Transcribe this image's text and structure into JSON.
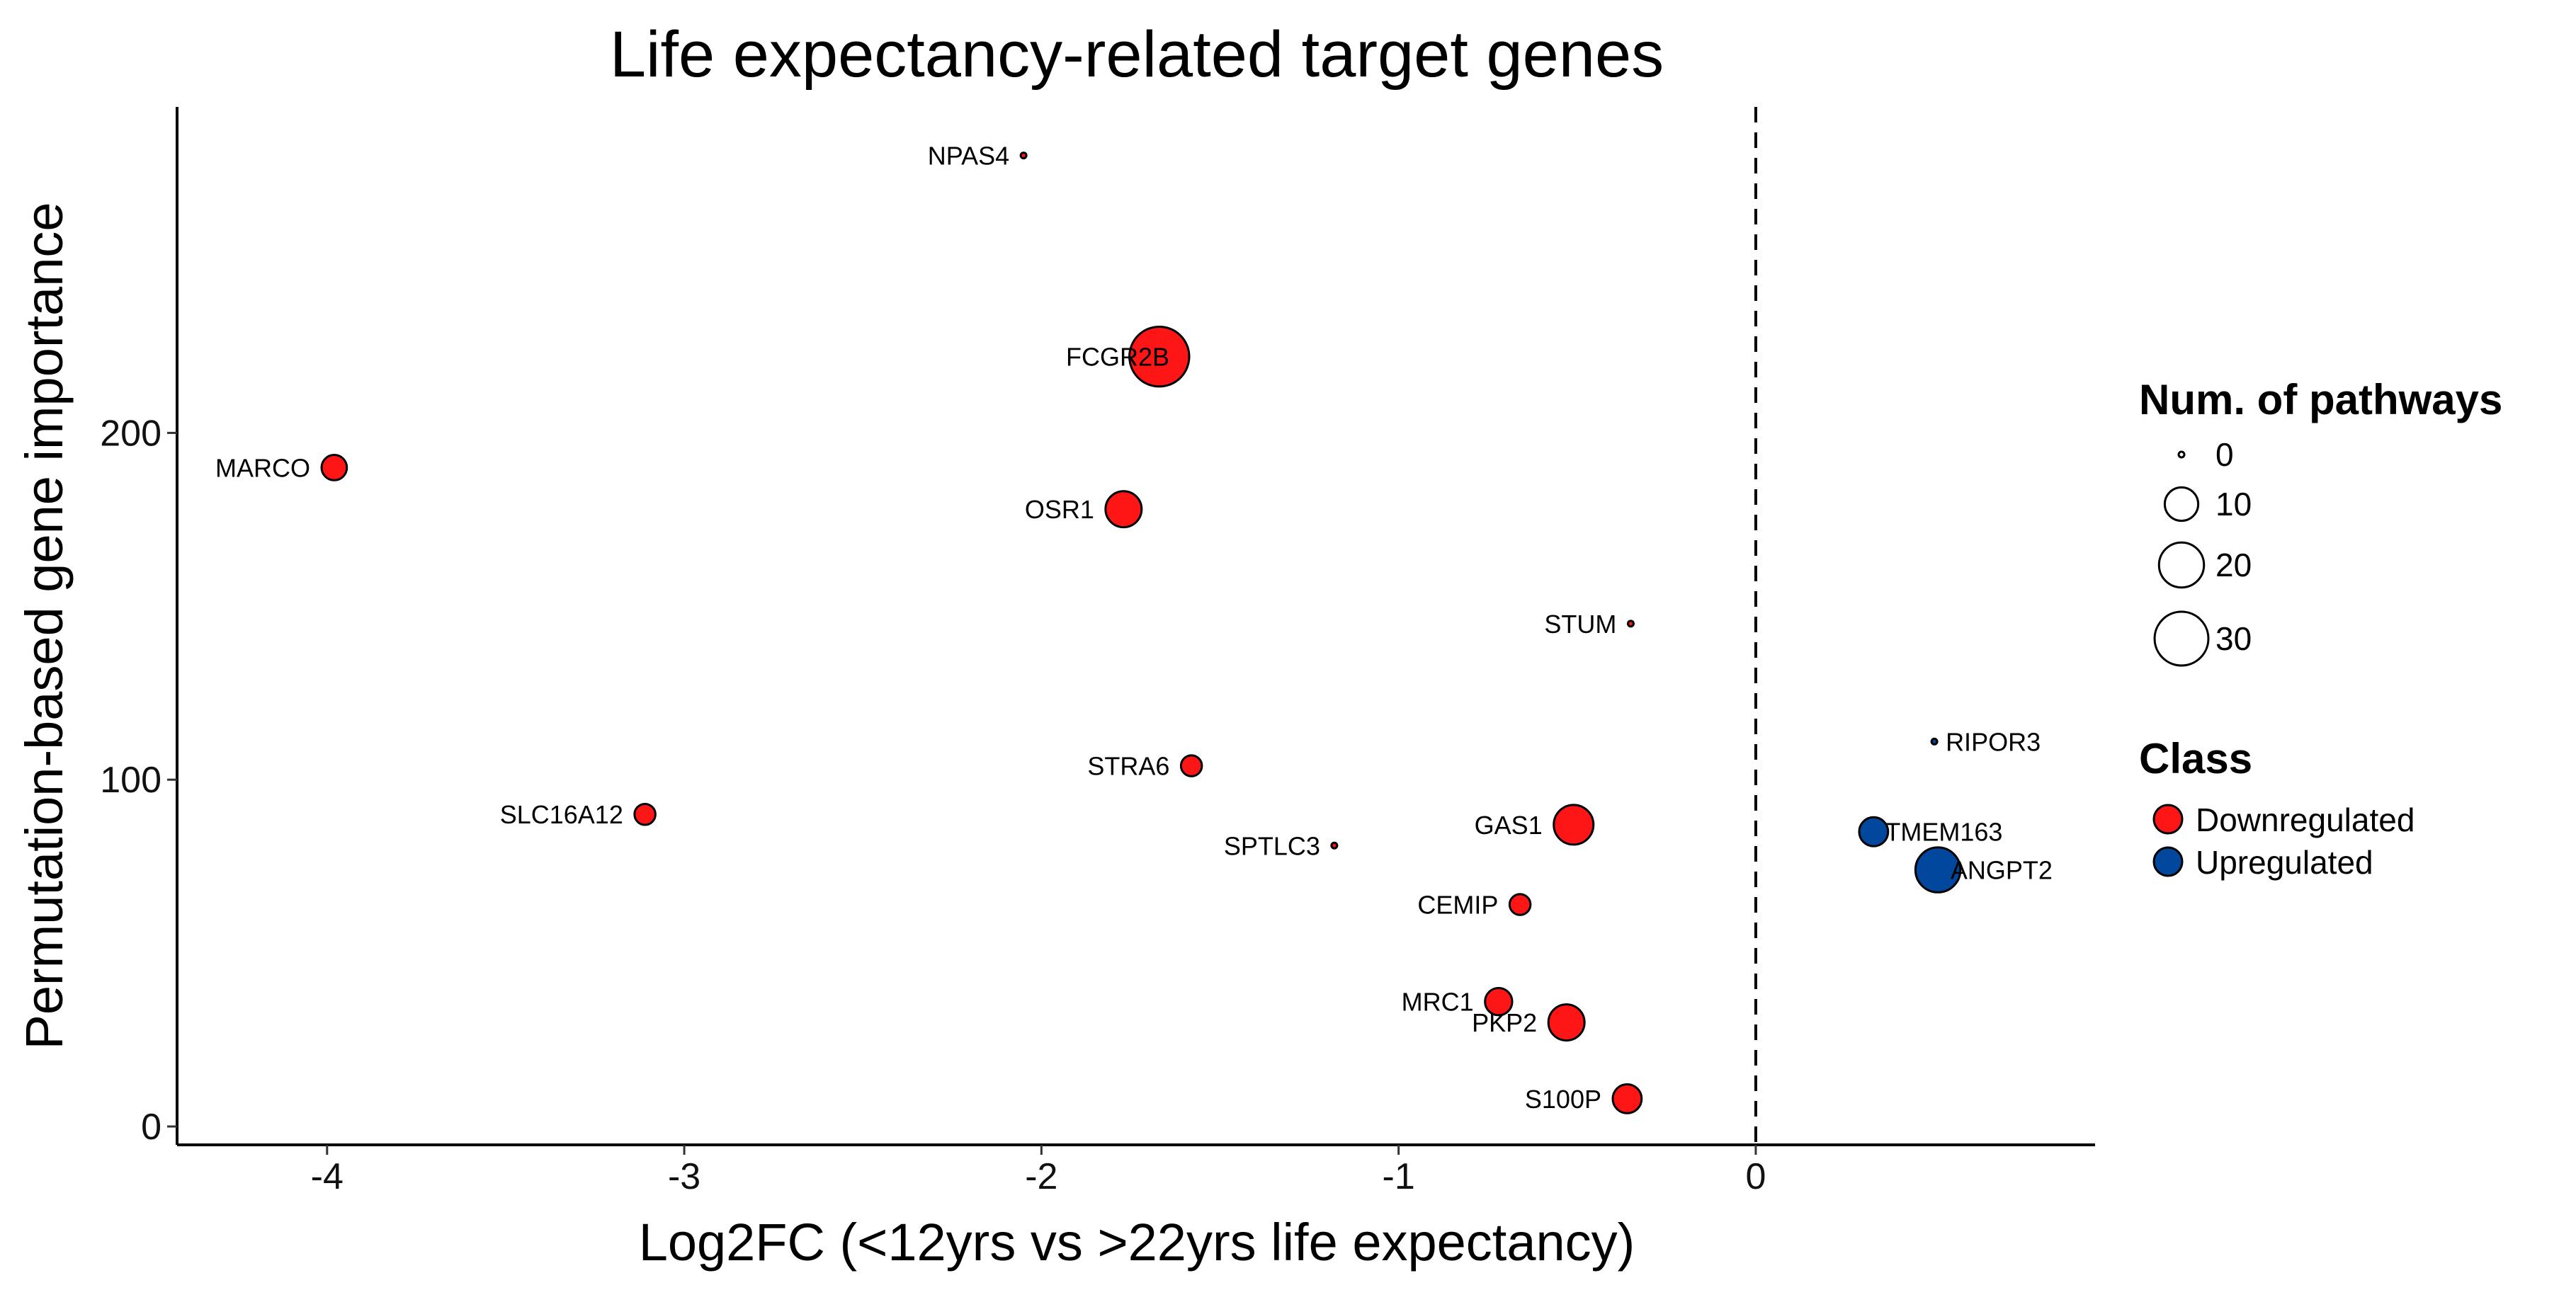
{
  "chart_data": {
    "type": "scatter",
    "title": "Life expectancy-related target genes",
    "xlabel": "Log2FC (<12yrs vs >22yrs life expectancy)",
    "ylabel": "Permutation-based gene importance",
    "xlim": [
      -4.42,
      0.95
    ],
    "ylim": [
      -5.3,
      294
    ],
    "xticks": [
      -4,
      -3,
      -2,
      -1,
      0
    ],
    "yticks": [
      0,
      100,
      200
    ],
    "grid": false,
    "reference_line": {
      "x": 0,
      "style": "dashed"
    },
    "points": [
      {
        "gene": "NPAS4",
        "x": -2.05,
        "y": 280,
        "pathways": 0,
        "class": "Downregulated",
        "label_side": "left"
      },
      {
        "gene": "FCGR2B",
        "x": -1.67,
        "y": 222,
        "pathways": 38,
        "class": "Downregulated",
        "label_side": "left"
      },
      {
        "gene": "MARCO",
        "x": -3.98,
        "y": 190,
        "pathways": 5,
        "class": "Downregulated",
        "label_side": "left"
      },
      {
        "gene": "OSR1",
        "x": -1.77,
        "y": 178,
        "pathways": 12,
        "class": "Downregulated",
        "label_side": "left"
      },
      {
        "gene": "STUM",
        "x": -0.35,
        "y": 145,
        "pathways": 0,
        "class": "Downregulated",
        "label_side": "left"
      },
      {
        "gene": "RIPOR3",
        "x": 0.5,
        "y": 111,
        "pathways": 0,
        "class": "Upregulated",
        "label_side": "right"
      },
      {
        "gene": "STRA6",
        "x": -1.58,
        "y": 104,
        "pathways": 3,
        "class": "Downregulated",
        "label_side": "left"
      },
      {
        "gene": "SLC16A12",
        "x": -3.11,
        "y": 90,
        "pathways": 3,
        "class": "Downregulated",
        "label_side": "left"
      },
      {
        "gene": "GAS1",
        "x": -0.51,
        "y": 87,
        "pathways": 15,
        "class": "Downregulated",
        "label_side": "left"
      },
      {
        "gene": "TMEM163",
        "x": 0.33,
        "y": 85,
        "pathways": 7,
        "class": "Upregulated",
        "label_side": "right"
      },
      {
        "gene": "SPTLC3",
        "x": -1.18,
        "y": 81,
        "pathways": 0,
        "class": "Downregulated",
        "label_side": "left"
      },
      {
        "gene": "ANGPT2",
        "x": 0.51,
        "y": 74,
        "pathways": 20,
        "class": "Upregulated",
        "label_side": "right"
      },
      {
        "gene": "CEMIP",
        "x": -0.66,
        "y": 64,
        "pathways": 3,
        "class": "Downregulated",
        "label_side": "left"
      },
      {
        "gene": "MRC1",
        "x": -0.72,
        "y": 36,
        "pathways": 6,
        "class": "Downregulated",
        "label_side": "left"
      },
      {
        "gene": "PKP2",
        "x": -0.53,
        "y": 30,
        "pathways": 12,
        "class": "Downregulated",
        "label_side": "left"
      },
      {
        "gene": "S100P",
        "x": -0.36,
        "y": 8,
        "pathways": 7,
        "class": "Downregulated",
        "label_side": "left"
      }
    ],
    "legend": {
      "placement": "right",
      "size": {
        "title": "Num. of pathways",
        "breaks": [
          0,
          10,
          20,
          30
        ]
      },
      "color": {
        "title": "Class",
        "entries": [
          {
            "label": "Downregulated",
            "color": "#fe1515"
          },
          {
            "label": "Upregulated",
            "color": "#00479d"
          }
        ]
      }
    }
  }
}
